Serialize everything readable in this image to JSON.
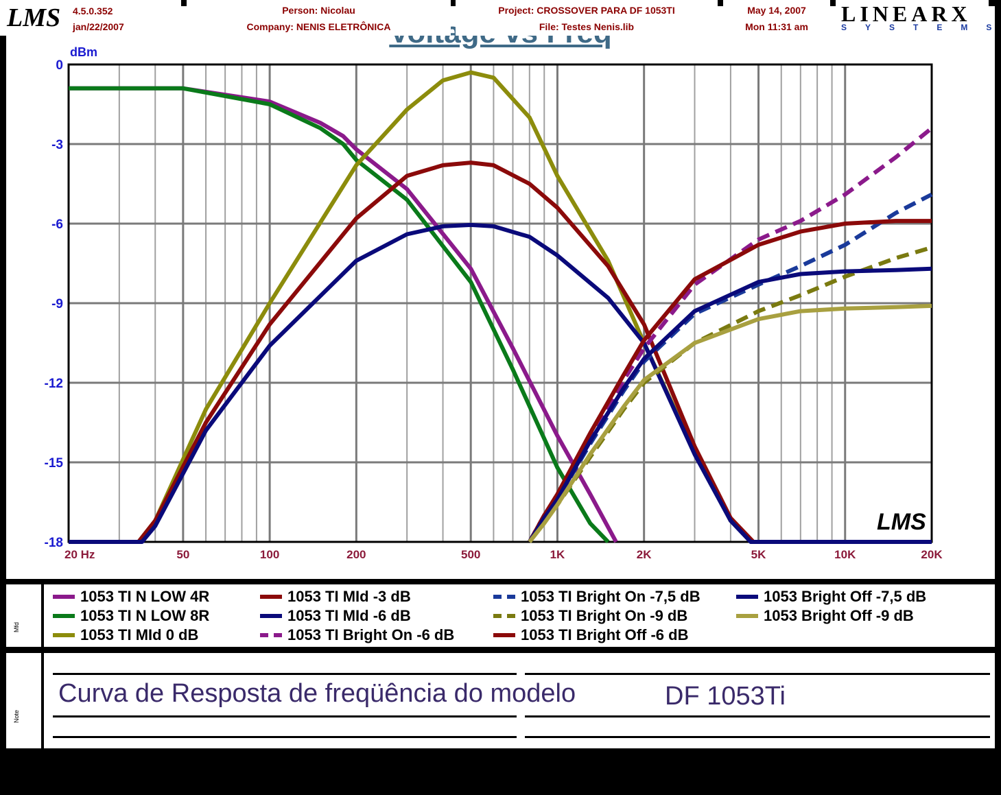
{
  "chart_data": {
    "type": "line",
    "title": "Voltage vs Freq",
    "ylabel": "dBm",
    "xscale": "log",
    "xlim": [
      20,
      20000
    ],
    "ylim": [
      -18,
      0
    ],
    "y_ticks": [
      0,
      -3,
      -6,
      -9,
      -12,
      -15,
      -18
    ],
    "x_ticks": [
      20,
      50,
      100,
      200,
      500,
      1000,
      2000,
      5000,
      10000,
      20000
    ],
    "x_tick_labels": [
      "20  Hz",
      "50",
      "100",
      "200",
      "500",
      "1K",
      "2K",
      "5K",
      "10K",
      "20K"
    ],
    "grid": true,
    "watermark": "LMS",
    "series": [
      {
        "name": "1053 TI N LOW 4R",
        "color": "#8b1a8b",
        "dash": false,
        "x": [
          20,
          50,
          100,
          150,
          180,
          200,
          300,
          500,
          700,
          1000,
          1300,
          1600
        ],
        "y": [
          -0.9,
          -0.9,
          -1.4,
          -2.2,
          -2.7,
          -3.2,
          -4.7,
          -7.7,
          -10.7,
          -14.0,
          -16.2,
          -18
        ]
      },
      {
        "name": "1053 TI N LOW 8R",
        "color": "#0a7a1a",
        "dash": false,
        "x": [
          20,
          50,
          100,
          150,
          180,
          200,
          300,
          500,
          700,
          1000,
          1300,
          1500
        ],
        "y": [
          -0.9,
          -0.9,
          -1.5,
          -2.4,
          -3.0,
          -3.6,
          -5.1,
          -8.2,
          -11.5,
          -15.2,
          -17.3,
          -18
        ]
      },
      {
        "name": "1053 TI MId  0 dB",
        "color": "#8c8c0c",
        "dash": false,
        "x": [
          20,
          35,
          40,
          60,
          100,
          200,
          300,
          400,
          500,
          600,
          800,
          1000,
          1500,
          2000,
          3000,
          4000,
          4800,
          20000
        ],
        "y": [
          -18,
          -18,
          -17.2,
          -13.0,
          -9.0,
          -3.8,
          -1.7,
          -0.6,
          -0.3,
          -0.5,
          -2.0,
          -4.2,
          -7.4,
          -10.5,
          -14.6,
          -17.2,
          -18,
          -18
        ]
      },
      {
        "name": "1053 TI MId -3 dB",
        "color": "#8b0a0a",
        "dash": false,
        "x": [
          20,
          35,
          40,
          60,
          100,
          200,
          300,
          400,
          500,
          600,
          800,
          1000,
          1500,
          2000,
          3000,
          4000,
          4800,
          20000
        ],
        "y": [
          -18,
          -18,
          -17.2,
          -13.5,
          -9.8,
          -5.8,
          -4.2,
          -3.8,
          -3.7,
          -3.8,
          -4.5,
          -5.4,
          -7.6,
          -9.8,
          -14.4,
          -17.1,
          -18,
          -18
        ]
      },
      {
        "name": "1053 TI MId -6 dB",
        "color": "#0a0a7a",
        "dash": false,
        "x": [
          20,
          36,
          40,
          60,
          100,
          200,
          300,
          400,
          500,
          600,
          800,
          1000,
          1500,
          2000,
          3000,
          4000,
          4700,
          20000
        ],
        "y": [
          -18,
          -18,
          -17.4,
          -13.8,
          -10.6,
          -7.4,
          -6.4,
          -6.1,
          -6.05,
          -6.1,
          -6.5,
          -7.2,
          -8.8,
          -10.5,
          -14.7,
          -17.2,
          -18,
          -18
        ]
      },
      {
        "name": "1053 TI Bright On -6 dB",
        "color": "#8b1a8b",
        "dash": true,
        "x": [
          800,
          900,
          1000,
          1300,
          1700,
          2000,
          3000,
          5000,
          7000,
          10000,
          15000,
          20000
        ],
        "y": [
          -18,
          -17,
          -16.4,
          -14.2,
          -11.9,
          -10.7,
          -8.3,
          -6.6,
          -5.9,
          -4.9,
          -3.5,
          -2.4
        ]
      },
      {
        "name": "1053 TI Bright On -7,5 dB",
        "color": "#1a3a9a",
        "dash": true,
        "x": [
          800,
          900,
          1000,
          1300,
          1700,
          2000,
          3000,
          5000,
          7000,
          10000,
          15000,
          20000
        ],
        "y": [
          -18,
          -17,
          -16.4,
          -14.3,
          -12.3,
          -11.2,
          -9.4,
          -8.3,
          -7.6,
          -6.8,
          -5.6,
          -4.9
        ]
      },
      {
        "name": "1053 TI Bright On -9 dB",
        "color": "#7a7a10",
        "dash": true,
        "x": [
          800,
          900,
          1000,
          1300,
          1700,
          2000,
          3000,
          5000,
          7000,
          10000,
          15000,
          20000
        ],
        "y": [
          -18,
          -17.2,
          -16.6,
          -14.8,
          -13.0,
          -12.0,
          -10.5,
          -9.3,
          -8.7,
          -8.0,
          -7.3,
          -6.9
        ]
      },
      {
        "name": "1053 TI Bright Off -6 dB",
        "color": "#8b0a0a",
        "dash": false,
        "x": [
          800,
          900,
          1000,
          1300,
          1700,
          2000,
          3000,
          5000,
          7000,
          10000,
          15000,
          20000
        ],
        "y": [
          -18,
          -17.0,
          -16.2,
          -13.9,
          -11.7,
          -10.4,
          -8.1,
          -6.8,
          -6.3,
          -6.0,
          -5.9,
          -5.9
        ]
      },
      {
        "name": "1053 Bright Off -7,5 dB",
        "color": "#0a0a7a",
        "dash": false,
        "x": [
          800,
          900,
          1000,
          1300,
          1700,
          2000,
          3000,
          5000,
          7000,
          10000,
          15000,
          20000
        ],
        "y": [
          -18,
          -17.1,
          -16.4,
          -14.2,
          -12.2,
          -11.1,
          -9.3,
          -8.2,
          -7.9,
          -7.8,
          -7.75,
          -7.7
        ]
      },
      {
        "name": "1053 Bright Off -9 dB",
        "color": "#a8a040",
        "dash": false,
        "x": [
          800,
          900,
          1000,
          1300,
          1700,
          2000,
          3000,
          5000,
          7000,
          10000,
          15000,
          20000
        ],
        "y": [
          -18,
          -17.3,
          -16.6,
          -14.7,
          -12.9,
          -11.9,
          -10.5,
          -9.6,
          -9.3,
          -9.2,
          -9.15,
          -9.1
        ]
      }
    ]
  },
  "legend": [
    {
      "label": "1053 TI N LOW 4R",
      "color": "#8b1a8b",
      "dash": false
    },
    {
      "label": "1053 TI N LOW 8R",
      "color": "#0a7a1a",
      "dash": false
    },
    {
      "label": "1053 TI MId  0 dB",
      "color": "#8c8c0c",
      "dash": false
    },
    {
      "label": "1053 TI MId -3 dB",
      "color": "#8b0a0a",
      "dash": false
    },
    {
      "label": "1053 TI MId -6 dB",
      "color": "#0a0a7a",
      "dash": false
    },
    {
      "label": "1053 TI Bright On -6 dB",
      "color": "#8b1a8b",
      "dash": true
    },
    {
      "label": "1053 TI Bright On -7,5 dB",
      "color": "#1a3a9a",
      "dash": true
    },
    {
      "label": "1053 TI Bright On -9 dB",
      "color": "#7a7a10",
      "dash": true
    },
    {
      "label": "1053 TI Bright Off -6 dB",
      "color": "#8b0a0a",
      "dash": false
    },
    {
      "label": "1053 Bright Off -7,5 dB",
      "color": "#0a0a7a",
      "dash": false
    },
    {
      "label": "1053 Bright Off -9 dB",
      "color": "#a8a040",
      "dash": false
    }
  ],
  "notes": {
    "text": "Curva de Resposta de freqüência do modelo",
    "model": "DF 1053Ti"
  },
  "footer": {
    "version": "4.5.0.352",
    "version_date": "jan/22/2007",
    "person": "Person: Nicolau",
    "company": "Company: NENIS ELETRÔNICA",
    "project": "Project: CROSSOVER PARA DF 1053TI",
    "file": "File: Testes Nenis.lib",
    "date": "May 14, 2007",
    "time": "Mon 11:31 am",
    "brand_top": "LINEARX",
    "brand_bottom": "SYSTEMS",
    "logo": "LMS"
  },
  "side_tags": {
    "legend": "Mfd",
    "notes": "Note"
  }
}
